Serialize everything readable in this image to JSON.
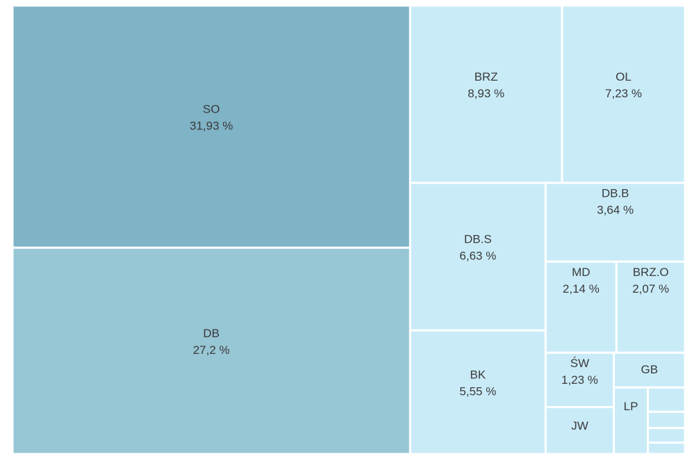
{
  "chart_data": {
    "type": "treemap",
    "categories": [
      "SO",
      "DB",
      "BRZ",
      "OL",
      "DB.S",
      "BK",
      "DB.B",
      "MD",
      "BRZ.O",
      "ŚW",
      "JW",
      "GB",
      "LP",
      null,
      null,
      null,
      null
    ],
    "values": [
      31.93,
      27.2,
      8.93,
      7.23,
      6.63,
      5.55,
      3.64,
      2.14,
      2.07,
      1.23,
      1.06,
      0.82,
      0.75,
      0.3,
      0.2,
      0.18,
      0.14
    ],
    "value_labels": [
      "31,93 %",
      "27,2 %",
      "8,93 %",
      "7,23 %",
      "6,63 %",
      "5,55 %",
      "3,64 %",
      "2,14 %",
      "2,07 %",
      "1,23 %",
      null,
      null,
      null,
      null,
      null,
      null,
      null
    ],
    "colors": [
      "#7fb3c6",
      "#97c6d5",
      "#c9ebf8",
      "#c9ebf8",
      "#c9ebf8",
      "#c9ebf8",
      "#c9ebf8",
      "#c9ebf8",
      "#c9ebf8",
      "#c9ebf8",
      "#c9ebf8",
      "#c9ebf8",
      "#c9ebf8",
      "#c9ebf8",
      "#c9ebf8",
      "#c9ebf8",
      "#c9ebf8"
    ]
  }
}
